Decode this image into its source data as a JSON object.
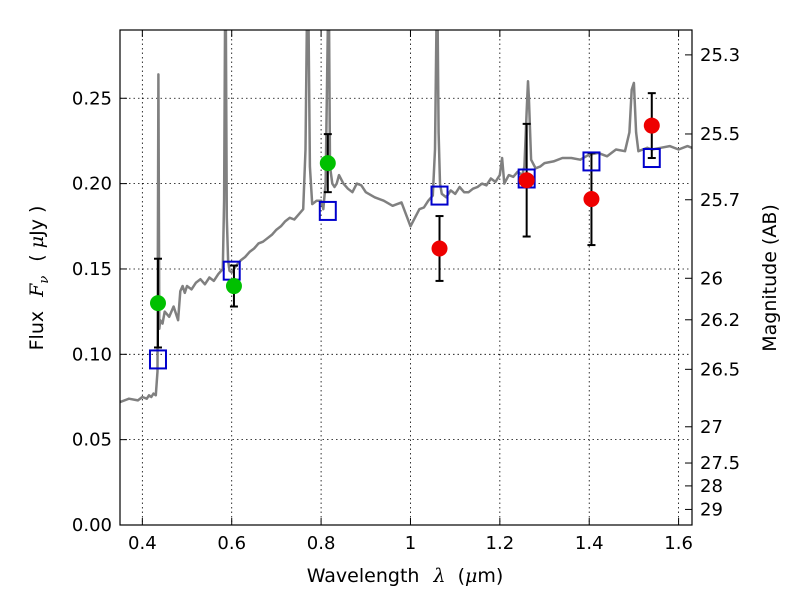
{
  "chart_data": {
    "type": "scatter",
    "title": "",
    "x_axis": {
      "label_text": "Wavelength",
      "label_symbol": "λ",
      "label_unit_open": "(",
      "label_unit_mu": "μ",
      "label_unit_rest": "m)",
      "range": [
        0.35,
        1.63
      ],
      "ticks": [
        0.4,
        0.6,
        0.8,
        1.0,
        1.2,
        1.4,
        1.6
      ],
      "tick_labels": [
        "0.4",
        "0.6",
        "0.8",
        "1",
        "1.2",
        "1.4",
        "1.6"
      ]
    },
    "y_axis": {
      "label_text": "Flux",
      "label_symbol": "F",
      "label_subscript": "ν",
      "label_unit_open": "(",
      "label_unit_mu": "μ",
      "label_unit_rest": "Jy",
      "label_unit_close": ")",
      "range": [
        0,
        0.29
      ],
      "ticks": [
        0.0,
        0.05,
        0.1,
        0.15,
        0.2,
        0.25
      ],
      "tick_labels": [
        "0.00",
        "0.05",
        "0.10",
        "0.15",
        "0.20",
        "0.25"
      ]
    },
    "y2_axis": {
      "label": "Magnitude (AB)",
      "scale": "AB magnitude, m = 23.9 - 2.5 log10(flux in μJy)",
      "tick_values": [
        25.3,
        25.5,
        25.7,
        26,
        26.2,
        26.5,
        27,
        27.5,
        28,
        29
      ],
      "tick_labels": [
        "25.3",
        "25.5",
        "25.7",
        "26",
        "26.2",
        "26.5",
        "27",
        "27.5",
        "28",
        "29"
      ]
    },
    "grid": true,
    "series": [
      {
        "kind": "model_spectrum",
        "color": "#808080",
        "x": [
          0.35,
          0.37,
          0.39,
          0.4,
          0.41,
          0.415,
          0.42,
          0.425,
          0.43,
          0.434,
          0.436,
          0.438,
          0.44,
          0.445,
          0.45,
          0.46,
          0.47,
          0.48,
          0.485,
          0.49,
          0.495,
          0.5,
          0.51,
          0.52,
          0.53,
          0.54,
          0.55,
          0.56,
          0.57,
          0.58,
          0.583,
          0.585,
          0.587,
          0.589,
          0.592,
          0.595,
          0.6,
          0.605,
          0.61,
          0.62,
          0.63,
          0.64,
          0.65,
          0.66,
          0.67,
          0.68,
          0.69,
          0.7,
          0.71,
          0.72,
          0.73,
          0.74,
          0.75,
          0.76,
          0.765,
          0.768,
          0.772,
          0.775,
          0.78,
          0.79,
          0.8,
          0.805,
          0.81,
          0.815,
          0.818,
          0.82,
          0.825,
          0.83,
          0.835,
          0.84,
          0.85,
          0.86,
          0.87,
          0.88,
          0.89,
          0.9,
          0.92,
          0.94,
          0.96,
          0.98,
          1.0,
          1.01,
          1.02,
          1.03,
          1.04,
          1.05,
          1.055,
          1.058,
          1.061,
          1.063,
          1.066,
          1.07,
          1.08,
          1.09,
          1.1,
          1.11,
          1.12,
          1.13,
          1.14,
          1.15,
          1.16,
          1.17,
          1.18,
          1.19,
          1.2,
          1.205,
          1.21,
          1.22,
          1.23,
          1.24,
          1.25,
          1.255,
          1.26,
          1.263,
          1.265,
          1.27,
          1.28,
          1.29,
          1.3,
          1.32,
          1.34,
          1.36,
          1.38,
          1.4,
          1.42,
          1.44,
          1.46,
          1.48,
          1.49,
          1.495,
          1.5,
          1.505,
          1.51,
          1.52,
          1.53,
          1.54,
          1.56,
          1.58,
          1.6,
          1.62,
          1.63
        ],
        "y": [
          0.072,
          0.074,
          0.073,
          0.075,
          0.074,
          0.076,
          0.075,
          0.077,
          0.076,
          0.09,
          0.264,
          0.115,
          0.12,
          0.118,
          0.125,
          0.122,
          0.128,
          0.12,
          0.137,
          0.14,
          0.136,
          0.14,
          0.138,
          0.142,
          0.144,
          0.141,
          0.145,
          0.143,
          0.147,
          0.15,
          0.19,
          0.29,
          0.29,
          0.18,
          0.155,
          0.149,
          0.148,
          0.15,
          0.152,
          0.155,
          0.157,
          0.16,
          0.162,
          0.165,
          0.166,
          0.168,
          0.17,
          0.173,
          0.175,
          0.178,
          0.18,
          0.179,
          0.182,
          0.185,
          0.22,
          0.29,
          0.29,
          0.21,
          0.188,
          0.19,
          0.19,
          0.185,
          0.2,
          0.29,
          0.29,
          0.21,
          0.2,
          0.198,
          0.2,
          0.205,
          0.2,
          0.197,
          0.195,
          0.2,
          0.199,
          0.195,
          0.192,
          0.19,
          0.187,
          0.189,
          0.175,
          0.18,
          0.185,
          0.186,
          0.19,
          0.193,
          0.22,
          0.29,
          0.29,
          0.23,
          0.2,
          0.194,
          0.192,
          0.196,
          0.194,
          0.198,
          0.195,
          0.195,
          0.197,
          0.198,
          0.2,
          0.199,
          0.203,
          0.201,
          0.205,
          0.215,
          0.2,
          0.205,
          0.204,
          0.207,
          0.205,
          0.21,
          0.243,
          0.26,
          0.25,
          0.214,
          0.209,
          0.21,
          0.212,
          0.213,
          0.215,
          0.215,
          0.214,
          0.217,
          0.218,
          0.216,
          0.22,
          0.219,
          0.23,
          0.255,
          0.259,
          0.23,
          0.219,
          0.22,
          0.221,
          0.22,
          0.221,
          0.222,
          0.22,
          0.222,
          0.221
        ]
      },
      {
        "kind": "model_photometry",
        "marker": "open-square",
        "color": "#0000cc",
        "x": [
          0.435,
          0.6,
          0.815,
          1.065,
          1.26,
          1.405,
          1.54
        ],
        "y": [
          0.097,
          0.149,
          0.184,
          0.193,
          0.203,
          0.213,
          0.215
        ]
      },
      {
        "kind": "observed_photometry",
        "marker": "filled-circle",
        "color": "#00c000",
        "x": [
          0.435,
          0.605,
          0.815
        ],
        "y": [
          0.13,
          0.14,
          0.212
        ],
        "yerr": [
          0.026,
          0.012,
          0.017
        ]
      },
      {
        "kind": "observed_photometry",
        "marker": "filled-circle",
        "color": "#ee0000",
        "x": [
          1.065,
          1.26,
          1.405,
          1.54
        ],
        "y": [
          0.162,
          0.202,
          0.191,
          0.234
        ],
        "yerr": [
          0.019,
          0.033,
          0.027,
          0.019
        ]
      }
    ]
  }
}
